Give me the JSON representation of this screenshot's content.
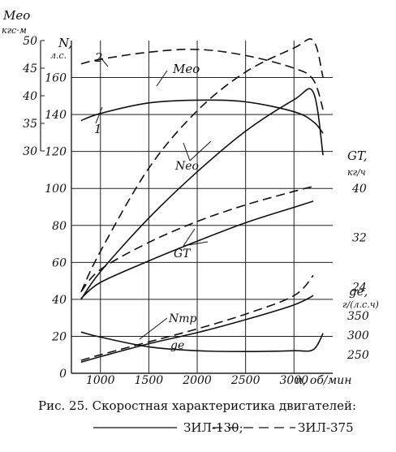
{
  "chart_data": {
    "type": "line",
    "caption": "Рис. 25. Скоростная характеристика двигателей:",
    "legend": [
      {
        "label": "ЗИЛ-130;",
        "style": "solid"
      },
      {
        "label": "ЗИЛ-375",
        "style": "dashed"
      }
    ],
    "x_axis": {
      "label": "n, об/мин",
      "range": [
        700,
        3400
      ],
      "ticks": [
        "1000",
        "1500",
        "2000",
        "2500",
        "3000"
      ]
    },
    "left_axis_N": {
      "label": [
        "N,",
        "л.с."
      ],
      "range": [
        0,
        180
      ],
      "ticks": [
        "0",
        "20",
        "40",
        "60",
        "80",
        "100",
        "120",
        "140",
        "160"
      ]
    },
    "left_axis_M": {
      "label": [
        "Mео",
        "кгс·м"
      ],
      "range": [
        30,
        50
      ],
      "ticks": [
        "30",
        "35",
        "40",
        "45",
        "50"
      ]
    },
    "right_axis_G": {
      "label": [
        "GT,",
        "кг/ч"
      ],
      "range": [
        16,
        40
      ],
      "ticks": [
        "24",
        "32",
        "40"
      ]
    },
    "right_axis_g": {
      "label": [
        "ge,",
        "г/(л.с.ч)"
      ],
      "range": [
        250,
        350
      ],
      "ticks": [
        "250",
        "300",
        "350"
      ]
    },
    "curve_labels": {
      "M": "Mео",
      "N": "Nео",
      "G": "GT",
      "Ntr": "Nтр",
      "g": "ge",
      "zil130": "1",
      "zil375": "2"
    },
    "series": [
      {
        "name": "Mео",
        "engine": "ЗИЛ-375",
        "axis": "M",
        "x": [
          800,
          1000,
          1500,
          2000,
          2500,
          3000,
          3200,
          3300
        ],
        "values": [
          45.8,
          46.6,
          47.9,
          48.4,
          47.3,
          45.0,
          42.9,
          37.5
        ]
      },
      {
        "name": "Mео",
        "engine": "ЗИЛ-130",
        "axis": "M",
        "x": [
          800,
          1000,
          1500,
          2000,
          2500,
          3000,
          3200,
          3300
        ],
        "values": [
          35.5,
          36.8,
          38.7,
          39.2,
          38.9,
          37.1,
          35.3,
          33.2
        ]
      },
      {
        "name": "Nео",
        "engine": "ЗИЛ-375",
        "axis": "N",
        "x": [
          800,
          1000,
          1500,
          2000,
          2500,
          3000,
          3200,
          3300
        ],
        "values": [
          44,
          66,
          111,
          142,
          163,
          176,
          180,
          160
        ]
      },
      {
        "name": "Nео",
        "engine": "ЗИЛ-130",
        "axis": "N",
        "x": [
          800,
          1000,
          1500,
          2000,
          2500,
          3000,
          3200,
          3300
        ],
        "values": [
          40,
          55,
          84,
          109,
          131,
          148,
          152,
          118
        ]
      },
      {
        "name": "GT",
        "engine": "ЗИЛ-375",
        "axis": "G",
        "x": [
          800,
          1000,
          1500,
          2000,
          2500,
          3000,
          3200
        ],
        "values": [
          23.2,
          26.8,
          31.2,
          34.6,
          37.3,
          39.5,
          40.3
        ]
      },
      {
        "name": "GT",
        "engine": "ЗИЛ-130",
        "axis": "G",
        "x": [
          800,
          1000,
          1500,
          2000,
          2500,
          3000,
          3200
        ],
        "values": [
          22.1,
          24.7,
          28.2,
          31.4,
          34.4,
          36.9,
          37.9
        ]
      },
      {
        "name": "Nтр",
        "engine": "ЗИЛ-375",
        "axis": "N",
        "x": [
          800,
          1000,
          1500,
          2000,
          2500,
          3000,
          3200
        ],
        "values": [
          7,
          10,
          17,
          24,
          32,
          42,
          53
        ]
      },
      {
        "name": "Nтр",
        "engine": "ЗИЛ-130",
        "axis": "N",
        "x": [
          800,
          1000,
          1500,
          2000,
          2500,
          3000,
          3200
        ],
        "values": [
          6,
          9,
          16,
          22,
          29,
          37,
          42
        ]
      },
      {
        "name": "ge",
        "engine": "ЗИЛ-130",
        "axis": "g",
        "x": [
          800,
          1000,
          1500,
          2000,
          2500,
          3000,
          3200,
          3300
        ],
        "values": [
          308,
          295,
          270,
          260,
          258,
          260,
          263,
          305
        ]
      }
    ]
  }
}
